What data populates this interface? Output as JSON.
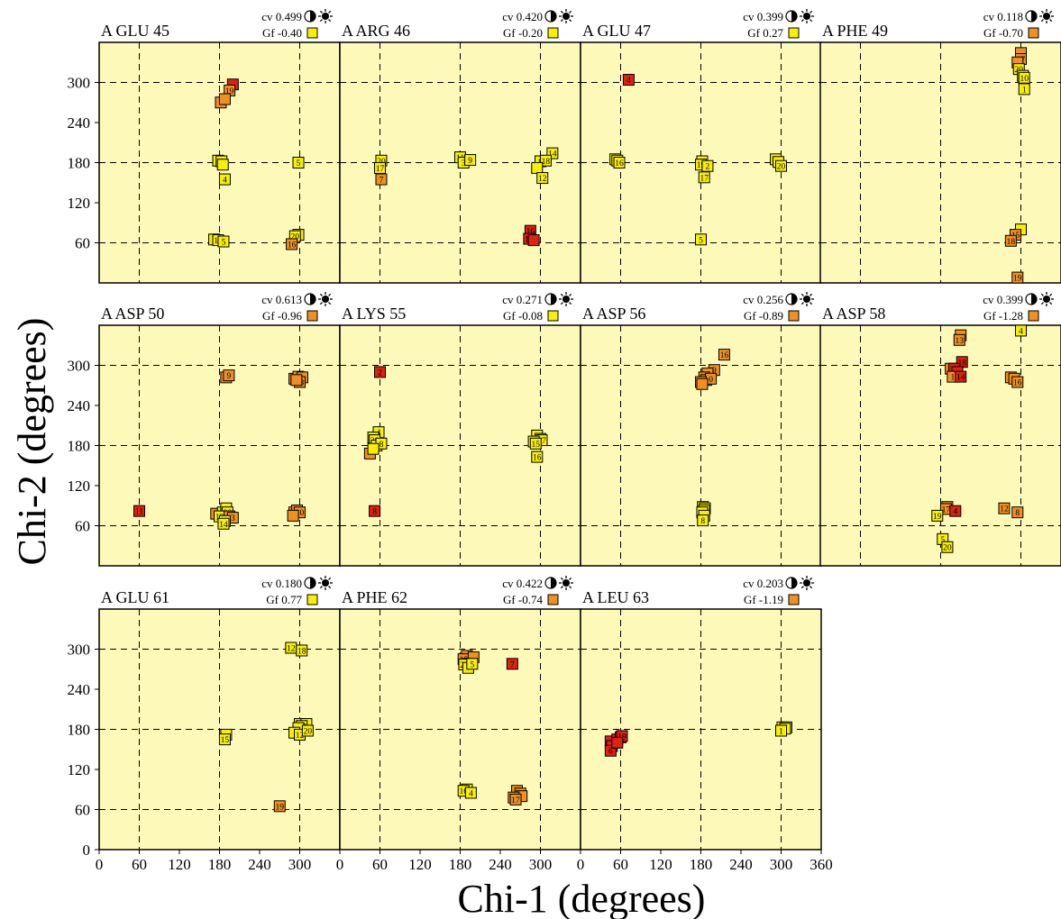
{
  "xlabel": "Chi-1 (degrees)",
  "ylabel": "Chi-2 (degrees)",
  "colors": {
    "panel_bg": "#fdfab9",
    "yellow": "#f8f000",
    "orange": "#f09020",
    "red": "#e02010"
  },
  "chart_data": [
    {
      "type": "scatter",
      "residue": "A GLU 45",
      "cv": "cv 0.499",
      "gf": "Gf -0.40",
      "gf_color": "yellow",
      "xlim": [
        0,
        360
      ],
      "ylim": [
        0,
        360
      ],
      "points": [
        [
          200,
          297,
          "",
          "red"
        ],
        [
          195,
          288,
          "19",
          "orange"
        ],
        [
          182,
          270,
          "",
          "orange"
        ],
        [
          188,
          275,
          "",
          "orange"
        ],
        [
          178,
          183,
          "",
          "yellow"
        ],
        [
          183,
          182,
          "8",
          "yellow"
        ],
        [
          185,
          177,
          "",
          "yellow"
        ],
        [
          188,
          155,
          "4",
          "yellow"
        ],
        [
          298,
          180,
          "5",
          "yellow"
        ],
        [
          172,
          65,
          "",
          "yellow"
        ],
        [
          178,
          64,
          "18",
          "yellow"
        ],
        [
          186,
          62,
          "5",
          "yellow"
        ],
        [
          298,
          72,
          "",
          "yellow"
        ],
        [
          293,
          70,
          "20",
          "yellow"
        ],
        [
          288,
          58,
          "16",
          "orange"
        ]
      ]
    },
    {
      "type": "scatter",
      "residue": "A ARG 46",
      "cv": "cv 0.420",
      "gf": "Gf -0.20",
      "gf_color": "yellow",
      "xlim": [
        0,
        360
      ],
      "ylim": [
        0,
        360
      ],
      "points": [
        [
          62,
          183,
          "20",
          "yellow"
        ],
        [
          60,
          172,
          "17",
          "yellow"
        ],
        [
          62,
          155,
          "7",
          "orange"
        ],
        [
          180,
          188,
          "11",
          "yellow"
        ],
        [
          185,
          180,
          "3",
          "yellow"
        ],
        [
          195,
          184,
          "9",
          "yellow"
        ],
        [
          318,
          194,
          "14",
          "yellow"
        ],
        [
          300,
          182,
          "8",
          "yellow"
        ],
        [
          308,
          183,
          "18",
          "yellow"
        ],
        [
          295,
          172,
          "",
          "yellow"
        ],
        [
          303,
          157,
          "12",
          "yellow"
        ],
        [
          285,
          78,
          "16",
          "red"
        ],
        [
          283,
          66,
          "19",
          "red"
        ],
        [
          290,
          64,
          "",
          "red"
        ]
      ]
    },
    {
      "type": "scatter",
      "residue": "A GLU 47",
      "cv": "cv 0.399",
      "gf": "Gf 0.27",
      "gf_color": "yellow",
      "xlim": [
        0,
        360
      ],
      "ylim": [
        0,
        360
      ],
      "points": [
        [
          72,
          304,
          "4",
          "red"
        ],
        [
          52,
          185,
          "",
          "yellow"
        ],
        [
          55,
          183,
          "",
          "yellow"
        ],
        [
          58,
          180,
          "16",
          "yellow"
        ],
        [
          182,
          182,
          "10",
          "yellow"
        ],
        [
          180,
          177,
          "19",
          "yellow"
        ],
        [
          190,
          175,
          "2",
          "yellow"
        ],
        [
          185,
          158,
          "17",
          "yellow"
        ],
        [
          292,
          185,
          "",
          "yellow"
        ],
        [
          296,
          181,
          "",
          "yellow"
        ],
        [
          300,
          175,
          "20",
          "yellow"
        ],
        [
          180,
          65,
          "5",
          "yellow"
        ]
      ]
    },
    {
      "type": "scatter",
      "residue": "A PHE 49",
      "cv": "cv 0.118",
      "gf": "Gf -0.70",
      "gf_color": "orange",
      "xlim": [
        0,
        360
      ],
      "ylim": [
        0,
        360
      ],
      "points": [
        [
          300,
          344,
          "",
          "orange"
        ],
        [
          300,
          335,
          "17",
          "orange"
        ],
        [
          295,
          330,
          "",
          "orange"
        ],
        [
          297,
          320,
          "20",
          "yellow"
        ],
        [
          303,
          310,
          "",
          "yellow"
        ],
        [
          305,
          307,
          "10",
          "yellow"
        ],
        [
          305,
          290,
          "1",
          "yellow"
        ],
        [
          300,
          80,
          "",
          "yellow"
        ],
        [
          292,
          72,
          "15",
          "orange"
        ],
        [
          285,
          63,
          "18",
          "orange"
        ],
        [
          295,
          8,
          "19",
          "orange"
        ]
      ]
    },
    {
      "type": "scatter",
      "residue": "A ASP 50",
      "cv": "cv 0.613",
      "gf": "Gf -0.96",
      "gf_color": "orange",
      "xlim": [
        0,
        360
      ],
      "ylim": [
        0,
        360
      ],
      "points": [
        [
          190,
          282,
          "",
          "orange"
        ],
        [
          194,
          285,
          "9",
          "orange"
        ],
        [
          292,
          280,
          "4",
          "orange"
        ],
        [
          298,
          283,
          "",
          "orange"
        ],
        [
          304,
          282,
          "",
          "orange"
        ],
        [
          300,
          275,
          "18",
          "orange"
        ],
        [
          295,
          278,
          "",
          "orange"
        ],
        [
          60,
          82,
          "11",
          "red"
        ],
        [
          175,
          78,
          "",
          "orange"
        ],
        [
          185,
          80,
          "",
          "yellow"
        ],
        [
          190,
          86,
          "",
          "yellow"
        ],
        [
          192,
          80,
          "20",
          "yellow"
        ],
        [
          180,
          74,
          "19",
          "yellow"
        ],
        [
          195,
          74,
          "",
          "orange"
        ],
        [
          200,
          72,
          "3",
          "orange"
        ],
        [
          188,
          67,
          "",
          "yellow"
        ],
        [
          186,
          63,
          "14",
          "yellow"
        ],
        [
          292,
          80,
          "",
          "orange"
        ],
        [
          296,
          83,
          "",
          "orange"
        ],
        [
          300,
          80,
          "10",
          "orange"
        ],
        [
          290,
          75,
          "",
          "orange"
        ]
      ]
    },
    {
      "type": "scatter",
      "residue": "A LYS 55",
      "cv": "cv 0.271",
      "gf": "Gf -0.08",
      "gf_color": "yellow",
      "xlim": [
        0,
        360
      ],
      "ylim": [
        0,
        360
      ],
      "points": [
        [
          60,
          290,
          "2",
          "red"
        ],
        [
          58,
          200,
          "4",
          "yellow"
        ],
        [
          50,
          192,
          "",
          "yellow"
        ],
        [
          52,
          188,
          "20",
          "yellow"
        ],
        [
          55,
          180,
          "",
          "yellow"
        ],
        [
          62,
          183,
          "8",
          "yellow"
        ],
        [
          45,
          168,
          "",
          "orange"
        ],
        [
          50,
          175,
          "",
          "yellow"
        ],
        [
          52,
          82,
          "8",
          "red"
        ],
        [
          295,
          195,
          "",
          "yellow"
        ],
        [
          300,
          190,
          "",
          "yellow"
        ],
        [
          302,
          188,
          "17",
          "yellow"
        ],
        [
          290,
          186,
          "",
          "yellow"
        ],
        [
          293,
          183,
          "15",
          "yellow"
        ],
        [
          295,
          163,
          "16",
          "yellow"
        ]
      ]
    },
    {
      "type": "scatter",
      "residue": "A ASP 56",
      "cv": "cv 0.256",
      "gf": "Gf -0.89",
      "gf_color": "orange",
      "xlim": [
        0,
        360
      ],
      "ylim": [
        0,
        360
      ],
      "points": [
        [
          215,
          316,
          "16",
          "orange"
        ],
        [
          200,
          293,
          "9",
          "orange"
        ],
        [
          190,
          288,
          "",
          "orange"
        ],
        [
          185,
          282,
          "",
          "orange"
        ],
        [
          188,
          278,
          "14",
          "orange"
        ],
        [
          195,
          280,
          "0",
          "orange"
        ],
        [
          180,
          275,
          "",
          "orange"
        ],
        [
          182,
          272,
          "",
          "orange"
        ],
        [
          183,
          88,
          "",
          "yellow"
        ],
        [
          186,
          86,
          "",
          "yellow"
        ],
        [
          185,
          83,
          "20",
          "yellow"
        ],
        [
          182,
          80,
          "",
          "yellow"
        ],
        [
          185,
          75,
          "",
          "yellow"
        ],
        [
          183,
          68,
          "8",
          "yellow"
        ]
      ]
    },
    {
      "type": "scatter",
      "residue": "A ASP 58",
      "cv": "cv 0.399",
      "gf": "Gf -1.28",
      "gf_color": "orange",
      "xlim": [
        0,
        360
      ],
      "ylim": [
        0,
        360
      ],
      "points": [
        [
          300,
          352,
          "4",
          "yellow"
        ],
        [
          210,
          345,
          "",
          "orange"
        ],
        [
          208,
          338,
          "13",
          "orange"
        ],
        [
          212,
          305,
          "18",
          "red"
        ],
        [
          195,
          295,
          "",
          "orange"
        ],
        [
          200,
          295,
          "1",
          "red"
        ],
        [
          205,
          290,
          "",
          "red"
        ],
        [
          198,
          283,
          "1",
          "orange"
        ],
        [
          210,
          283,
          "14",
          "red"
        ],
        [
          285,
          282,
          "",
          "orange"
        ],
        [
          290,
          280,
          "",
          "orange"
        ],
        [
          295,
          275,
          "16",
          "orange"
        ],
        [
          190,
          88,
          "",
          "orange"
        ],
        [
          188,
          85,
          "17",
          "orange"
        ],
        [
          202,
          82,
          "4",
          "red"
        ],
        [
          175,
          75,
          "19",
          "yellow"
        ],
        [
          275,
          86,
          "12",
          "orange"
        ],
        [
          295,
          80,
          "8",
          "orange"
        ],
        [
          183,
          40,
          "5",
          "yellow"
        ],
        [
          190,
          28,
          "20",
          "yellow"
        ]
      ]
    },
    {
      "type": "scatter",
      "residue": "A GLU 61",
      "cv": "cv 0.180",
      "gf": "Gf 0.77",
      "gf_color": "yellow",
      "xlim": [
        0,
        360
      ],
      "ylim": [
        360
      ],
      "points": [
        [
          287,
          302,
          "12",
          "yellow"
        ],
        [
          303,
          298,
          "18",
          "yellow"
        ],
        [
          190,
          172,
          "",
          "yellow"
        ],
        [
          188,
          165,
          "15",
          "yellow"
        ],
        [
          300,
          188,
          "",
          "yellow"
        ],
        [
          310,
          188,
          "",
          "yellow"
        ],
        [
          303,
          185,
          "17",
          "yellow"
        ],
        [
          298,
          182,
          "",
          "yellow"
        ],
        [
          292,
          175,
          "",
          "yellow"
        ],
        [
          300,
          172,
          "12",
          "yellow"
        ],
        [
          312,
          178,
          "20",
          "yellow"
        ],
        [
          270,
          65,
          "19",
          "orange"
        ]
      ]
    },
    {
      "type": "scatter",
      "residue": "A PHE 62",
      "cv": "cv 0.422",
      "gf": "Gf -0.74",
      "gf_color": "orange",
      "xlim": [
        0,
        360
      ],
      "ylim": [
        0,
        360
      ],
      "points": [
        [
          190,
          290,
          "",
          "orange"
        ],
        [
          185,
          285,
          "18",
          "orange"
        ],
        [
          200,
          288,
          "",
          "orange"
        ],
        [
          190,
          278,
          "",
          "orange"
        ],
        [
          186,
          277,
          "20",
          "yellow"
        ],
        [
          192,
          272,
          "",
          "yellow"
        ],
        [
          198,
          278,
          "5",
          "yellow"
        ],
        [
          258,
          278,
          "7",
          "red"
        ],
        [
          190,
          90,
          "",
          "yellow"
        ],
        [
          185,
          88,
          "16",
          "yellow"
        ],
        [
          196,
          85,
          "4",
          "yellow"
        ],
        [
          265,
          88,
          "",
          "orange"
        ],
        [
          270,
          84,
          "19",
          "orange"
        ],
        [
          272,
          80,
          "",
          "orange"
        ],
        [
          260,
          78,
          "",
          "orange"
        ],
        [
          263,
          75,
          "17",
          "orange"
        ]
      ]
    },
    {
      "type": "scatter",
      "residue": "A LEU 63",
      "cv": "cv 0.203",
      "gf": "Gf -1.19",
      "gf_color": "orange",
      "xlim": [
        0,
        360
      ],
      "ylim": [
        0,
        360
      ],
      "points": [
        [
          45,
          162,
          "",
          "red"
        ],
        [
          47,
          155,
          "",
          "red"
        ],
        [
          45,
          148,
          "6",
          "red"
        ],
        [
          55,
          165,
          "",
          "red"
        ],
        [
          60,
          168,
          "",
          "red"
        ],
        [
          62,
          170,
          "19",
          "red"
        ],
        [
          55,
          160,
          "",
          "red"
        ],
        [
          302,
          183,
          "",
          "yellow"
        ],
        [
          308,
          183,
          "",
          "yellow"
        ],
        [
          306,
          181,
          "",
          "yellow"
        ],
        [
          300,
          178,
          "1",
          "yellow"
        ]
      ]
    }
  ],
  "x_ticks": [
    "0",
    "60",
    "120",
    "180",
    "240",
    "300",
    "0",
    "60",
    "120",
    "180",
    "240",
    "300",
    "0",
    "60",
    "120",
    "180",
    "240",
    "300",
    "360"
  ],
  "y_ticks_top": [
    "60",
    "120",
    "180",
    "240",
    "300"
  ],
  "y_ticks_bottom": [
    "0",
    "60",
    "120",
    "180",
    "240",
    "300"
  ],
  "icons": [
    "half-moon-icon",
    "sun-icon",
    "moon-sun-icon"
  ]
}
